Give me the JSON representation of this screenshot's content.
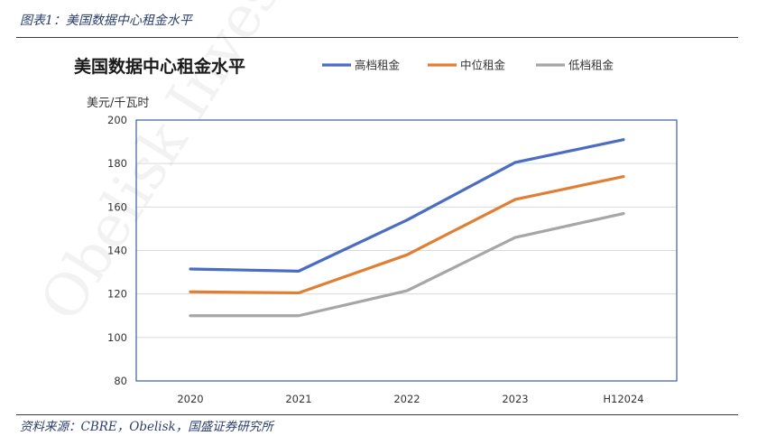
{
  "caption": "图表1：美国数据中心租金水平",
  "source": "资料来源：CBRE，Obelisk，国盛证券研究所",
  "watermark": "Obelisk Investment",
  "chart_data": {
    "type": "line",
    "title": "美国数据中心租金水平",
    "ylabel": "美元/千瓦时",
    "xlabel": "",
    "categories": [
      "2020",
      "2021",
      "2022",
      "2023",
      "H12024"
    ],
    "ylim": [
      80,
      200
    ],
    "yticks": [
      80,
      100,
      120,
      140,
      160,
      180,
      200
    ],
    "grid": true,
    "legend_position": "top",
    "series": [
      {
        "name": "高档租金",
        "color": "#4a6cc2",
        "values": [
          131.5,
          130.5,
          154,
          180.5,
          191
        ]
      },
      {
        "name": "中位租金",
        "color": "#e07e34",
        "values": [
          121,
          120.5,
          138,
          163.5,
          174
        ]
      },
      {
        "name": "低档租金",
        "color": "#a6a6a6",
        "values": [
          110,
          110,
          121.5,
          146,
          157
        ]
      }
    ]
  }
}
